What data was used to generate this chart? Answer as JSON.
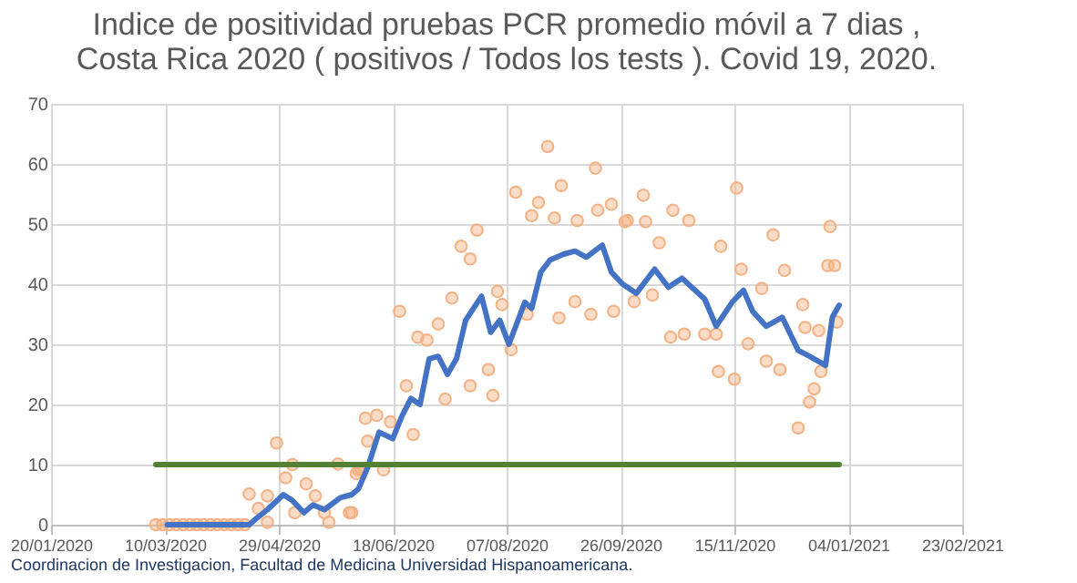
{
  "chart_data": {
    "type": "scatter",
    "title": [
      "Indice de positividad pruebas PCR promedio móvil a 7 dias ,",
      "Costa Rica 2020 ( positivos / Todos los tests ). Covid 19, 2020."
    ],
    "annotations": [
      "Coordinacion de Investigacion, Facultad de Medicina Universidad Hispanoamericana."
    ],
    "xlim": [
      "2020-01-20",
      "2021-02-23"
    ],
    "xticks": [
      {
        "value": "2020-01-20",
        "label": "20/01/2020"
      },
      {
        "value": "2020-03-10",
        "label": "10/03/2020"
      },
      {
        "value": "2020-04-29",
        "label": "29/04/2020"
      },
      {
        "value": "2020-06-18",
        "label": "18/06/2020"
      },
      {
        "value": "2020-08-07",
        "label": "07/08/2020"
      },
      {
        "value": "2020-09-26",
        "label": "26/09/2020"
      },
      {
        "value": "2020-11-15",
        "label": "15/11/2020"
      },
      {
        "value": "2021-01-04",
        "label": "04/01/2021"
      },
      {
        "value": "2021-02-23",
        "label": "23/02/2021"
      }
    ],
    "ylim": [
      0,
      70
    ],
    "yticks": [
      0,
      10,
      20,
      30,
      40,
      50,
      60,
      70
    ],
    "grid": true,
    "series": [
      {
        "marker": "circle",
        "color": "#f4b183",
        "x": [
          "2020-03-06",
          "2020-03-09",
          "2020-03-12",
          "2020-03-15",
          "2020-03-18",
          "2020-03-21",
          "2020-03-24",
          "2020-03-27",
          "2020-03-30",
          "2020-04-02",
          "2020-04-05",
          "2020-04-08",
          "2020-04-11",
          "2020-04-14",
          "2020-04-16",
          "2020-04-20",
          "2020-04-24",
          "2020-04-28",
          "2020-05-02",
          "2020-05-05",
          "2020-05-11",
          "2020-05-15",
          "2020-05-19",
          "2020-05-25",
          "2020-05-31",
          "2020-06-02",
          "2020-06-04",
          "2020-06-06",
          "2020-06-07",
          "2020-04-24",
          "2020-05-06",
          "2020-05-21",
          "2020-05-30",
          "2020-06-03",
          "2020-06-11",
          "2020-06-14",
          "2020-06-17",
          "2020-06-21",
          "2020-06-24",
          "2020-06-27",
          "2020-06-29",
          "2020-07-03",
          "2020-07-08",
          "2020-07-11",
          "2020-07-14",
          "2020-07-18",
          "2020-07-22",
          "2020-07-25",
          "2020-07-22",
          "2020-07-30",
          "2020-08-03",
          "2020-08-01",
          "2020-08-05",
          "2020-08-09",
          "2020-08-11",
          "2020-08-16",
          "2020-08-18",
          "2020-08-21",
          "2020-08-25",
          "2020-08-28",
          "2020-08-30",
          "2020-08-31",
          "2020-09-06",
          "2020-09-07",
          "2020-09-13",
          "2020-09-15",
          "2020-09-16",
          "2020-09-22",
          "2020-09-23",
          "2020-09-28",
          "2020-10-02",
          "2020-10-06",
          "2020-10-07",
          "2020-10-10",
          "2020-09-29",
          "2020-10-13",
          "2020-10-19",
          "2020-10-18",
          "2020-10-24",
          "2020-10-26",
          "2020-11-02",
          "2020-11-07",
          "2020-11-08",
          "2020-11-09",
          "2020-11-15",
          "2020-11-16",
          "2020-11-18",
          "2020-11-21",
          "2020-11-27",
          "2020-11-29",
          "2020-12-02",
          "2020-12-05",
          "2020-12-07",
          "2020-12-13",
          "2020-12-15",
          "2020-12-16",
          "2020-12-18",
          "2020-12-20",
          "2020-12-22",
          "2020-12-23",
          "2020-12-27",
          "2020-12-26",
          "2020-12-29",
          "2020-12-30"
        ],
        "values": [
          0,
          0,
          0,
          0,
          0,
          0,
          0,
          0,
          0,
          0,
          0,
          0,
          0,
          0,
          5.1,
          2.7,
          4.8,
          13.6,
          7.8,
          10,
          6.8,
          4.8,
          2,
          10.1,
          2,
          8.5,
          9.3,
          17.7,
          13.9,
          0.4,
          2,
          0.4,
          2,
          9.1,
          18.2,
          9.1,
          17.1,
          35.5,
          23.1,
          15,
          31.2,
          30.7,
          33.4,
          20.9,
          37.7,
          46.3,
          44.2,
          49,
          23.1,
          25.8,
          38.8,
          21.5,
          36.6,
          29.1,
          55.3,
          35,
          51.4,
          53.6,
          62.9,
          51,
          34.4,
          56.4,
          37.1,
          50.6,
          35,
          59.3,
          52.3,
          53.3,
          35.5,
          50.4,
          37.1,
          54.8,
          50.4,
          38.2,
          50.6,
          46.9,
          52.3,
          31.2,
          31.7,
          50.6,
          31.7,
          31.7,
          25.5,
          46.3,
          24.2,
          56,
          42.5,
          30.1,
          39.3,
          27.2,
          48.2,
          25.8,
          42.3,
          16.1,
          36.6,
          32.8,
          20.4,
          22.6,
          32.3,
          25.5,
          49.6,
          43.1,
          43.1,
          33.7
        ]
      },
      {
        "type": "line",
        "marker": "none",
        "color": "#4472c4",
        "x": [
          "2020-03-11",
          "2020-04-16",
          "2020-04-19",
          "2020-04-24",
          "2020-05-01",
          "2020-05-05",
          "2020-05-10",
          "2020-05-14",
          "2020-05-19",
          "2020-05-26",
          "2020-05-31",
          "2020-06-03",
          "2020-06-07",
          "2020-06-12",
          "2020-06-18",
          "2020-06-22",
          "2020-06-26",
          "2020-06-30",
          "2020-07-04",
          "2020-07-08",
          "2020-07-12",
          "2020-07-16",
          "2020-07-20",
          "2020-07-27",
          "2020-07-31",
          "2020-08-04",
          "2020-08-08",
          "2020-08-11",
          "2020-08-15",
          "2020-08-18",
          "2020-08-22",
          "2020-08-26",
          "2020-09-01",
          "2020-09-06",
          "2020-09-11",
          "2020-09-18",
          "2020-09-22",
          "2020-09-27",
          "2020-10-03",
          "2020-10-11",
          "2020-10-17",
          "2020-10-23",
          "2020-11-02",
          "2020-11-07",
          "2020-11-14",
          "2020-11-19",
          "2020-11-23",
          "2020-11-29",
          "2020-12-06",
          "2020-12-13",
          "2020-12-18",
          "2020-12-25",
          "2020-12-28",
          "2020-12-31"
        ],
        "values": [
          0,
          0,
          1,
          2.5,
          5,
          4,
          2,
          3.3,
          2.5,
          4.5,
          5,
          6,
          9.5,
          15.4,
          14.3,
          18,
          21,
          20,
          27.6,
          28,
          25,
          27.6,
          34,
          38,
          32,
          34,
          30,
          33,
          37,
          36,
          42,
          44,
          45,
          45.5,
          44.5,
          46.5,
          42,
          40,
          38.5,
          42.5,
          39.5,
          41,
          37.5,
          33,
          37,
          39,
          35.5,
          33,
          34.5,
          29,
          28,
          26.5,
          34.5,
          36.5
        ]
      },
      {
        "type": "line",
        "marker": "none",
        "color": "#548235",
        "x": [
          "2020-03-06",
          "2020-12-31"
        ],
        "values": [
          10,
          10
        ]
      }
    ]
  }
}
